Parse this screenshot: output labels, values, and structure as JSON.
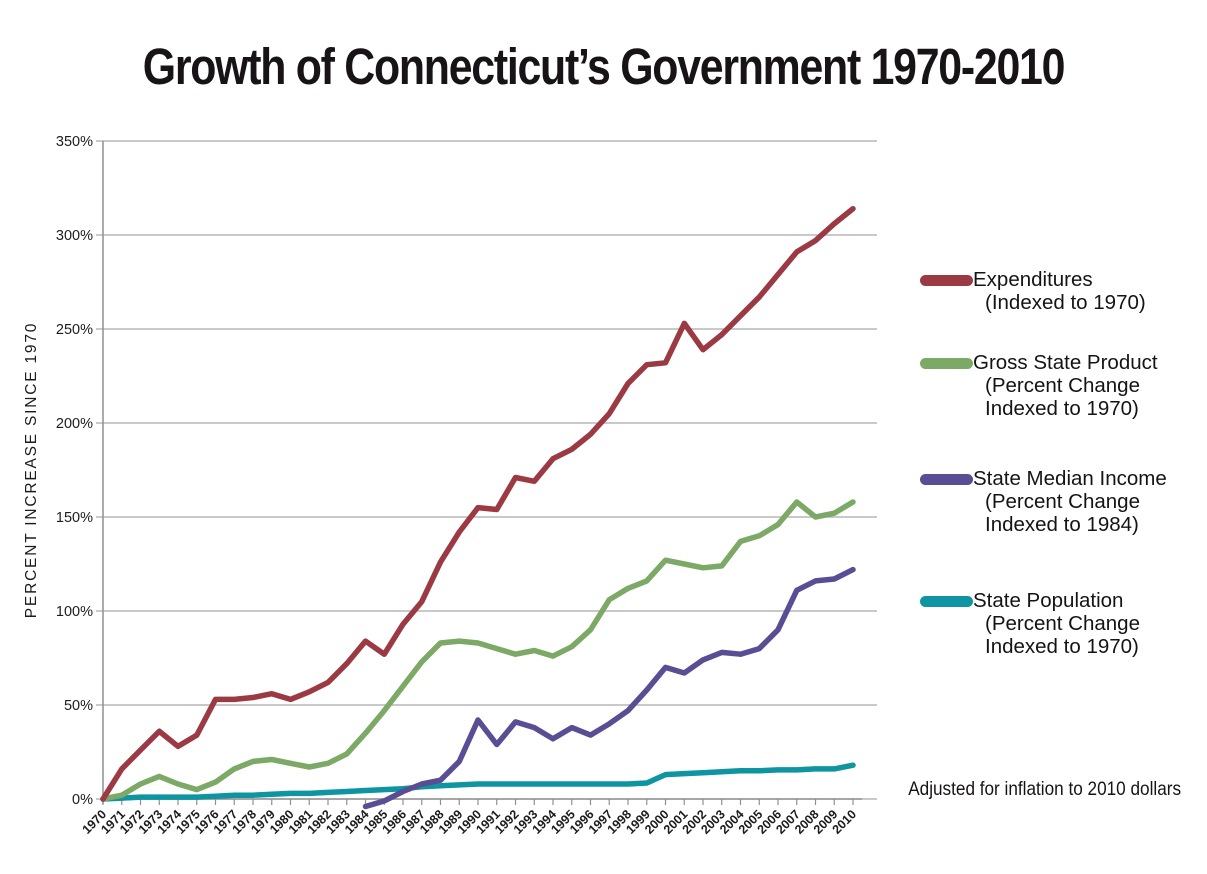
{
  "title": "Growth of Connecticut’s Government 1970-2010",
  "note": "Adjusted for inflation to 2010 dollars",
  "legend": {
    "items": [
      {
        "name": "expenditures",
        "color": "#9c3a44",
        "lines": [
          "Expenditures",
          "(Indexed to 1970)"
        ]
      },
      {
        "name": "gross-state-product",
        "color": "#7da967",
        "lines": [
          "Gross State Product",
          "(Percent Change",
          "Indexed to 1970)"
        ]
      },
      {
        "name": "state-median-income",
        "color": "#5a4d93",
        "lines": [
          "State Median Income",
          "(Percent Change",
          "Indexed to 1984)"
        ]
      },
      {
        "name": "state-population",
        "color": "#0e95a1",
        "lines": [
          "State Population",
          "(Percent Change",
          "Indexed to 1970)"
        ]
      }
    ]
  },
  "chart_data": {
    "type": "line",
    "title": "Growth of Connecticut’s Government 1970-2010",
    "xlabel": "",
    "ylabel": "PERCENT INCREASE SINCE 1970",
    "ylim": [
      0,
      350
    ],
    "grid": true,
    "legend_position": "right",
    "annotation": "Adjusted for inflation to 2010 dollars",
    "y_tick_labels": [
      "0%",
      "50%",
      "100%",
      "150%",
      "200%",
      "250%",
      "300%",
      "350%"
    ],
    "y_tick_values": [
      0,
      50,
      100,
      150,
      200,
      250,
      300,
      350
    ],
    "x": [
      "1970",
      "1971",
      "1972",
      "1973",
      "1974",
      "1975",
      "1976",
      "1977",
      "1978",
      "1979",
      "1980",
      "1981",
      "1982",
      "1983",
      "1984",
      "1985",
      "1986",
      "1987",
      "1988",
      "1989",
      "1990",
      "1991",
      "1992",
      "1993",
      "1994",
      "1995",
      "1996",
      "1997",
      "1998",
      "1999",
      "2000",
      "2001",
      "2002",
      "2003",
      "2004",
      "2005",
      "2006",
      "2007",
      "2008",
      "2009",
      "2010"
    ],
    "series": [
      {
        "name": "State Population (Percent Change Indexed to 1970)",
        "key": "state-population",
        "color": "#0e95a1",
        "values": [
          0,
          0.5,
          1,
          1,
          1,
          1,
          1.5,
          2,
          2,
          2.5,
          3,
          3,
          3.5,
          4,
          4.5,
          5,
          5.5,
          6.5,
          7,
          7.5,
          8,
          8,
          8,
          8,
          8,
          8,
          8,
          8,
          8,
          8.5,
          13,
          13.5,
          14,
          14.5,
          15,
          15,
          15.5,
          15.5,
          16,
          16,
          18
        ]
      },
      {
        "name": "State Median Income (Percent Change Indexed to 1984)",
        "key": "state-median-income",
        "color": "#5a4d93",
        "values": [
          null,
          null,
          null,
          null,
          null,
          null,
          null,
          null,
          null,
          null,
          null,
          null,
          null,
          null,
          -4,
          -1,
          4,
          8,
          10,
          20,
          42,
          29,
          41,
          38,
          32,
          38,
          34,
          40,
          47,
          58,
          70,
          67,
          74,
          78,
          77,
          80,
          90,
          111,
          116,
          117,
          122
        ]
      },
      {
        "name": "Gross State Product (Percent Change Indexed to 1970)",
        "key": "gross-state-product",
        "color": "#7da967",
        "values": [
          0,
          2,
          8,
          12,
          8,
          5,
          9,
          16,
          20,
          21,
          19,
          17,
          19,
          24,
          35,
          47,
          60,
          73,
          83,
          84,
          83,
          80,
          77,
          79,
          76,
          81,
          90,
          106,
          112,
          116,
          127,
          125,
          123,
          124,
          137,
          140,
          146,
          158,
          150,
          152,
          158
        ]
      },
      {
        "name": "Expenditures (Indexed to 1970)",
        "key": "expenditures",
        "color": "#9c3a44",
        "values": [
          0,
          16,
          26,
          36,
          28,
          34,
          53,
          53,
          54,
          56,
          53,
          57,
          62,
          72,
          84,
          77,
          93,
          105,
          126,
          142,
          155,
          154,
          171,
          169,
          181,
          186,
          194,
          205,
          221,
          231,
          232,
          253,
          239,
          247,
          257,
          267,
          279,
          291,
          297,
          306,
          314
        ]
      }
    ]
  }
}
